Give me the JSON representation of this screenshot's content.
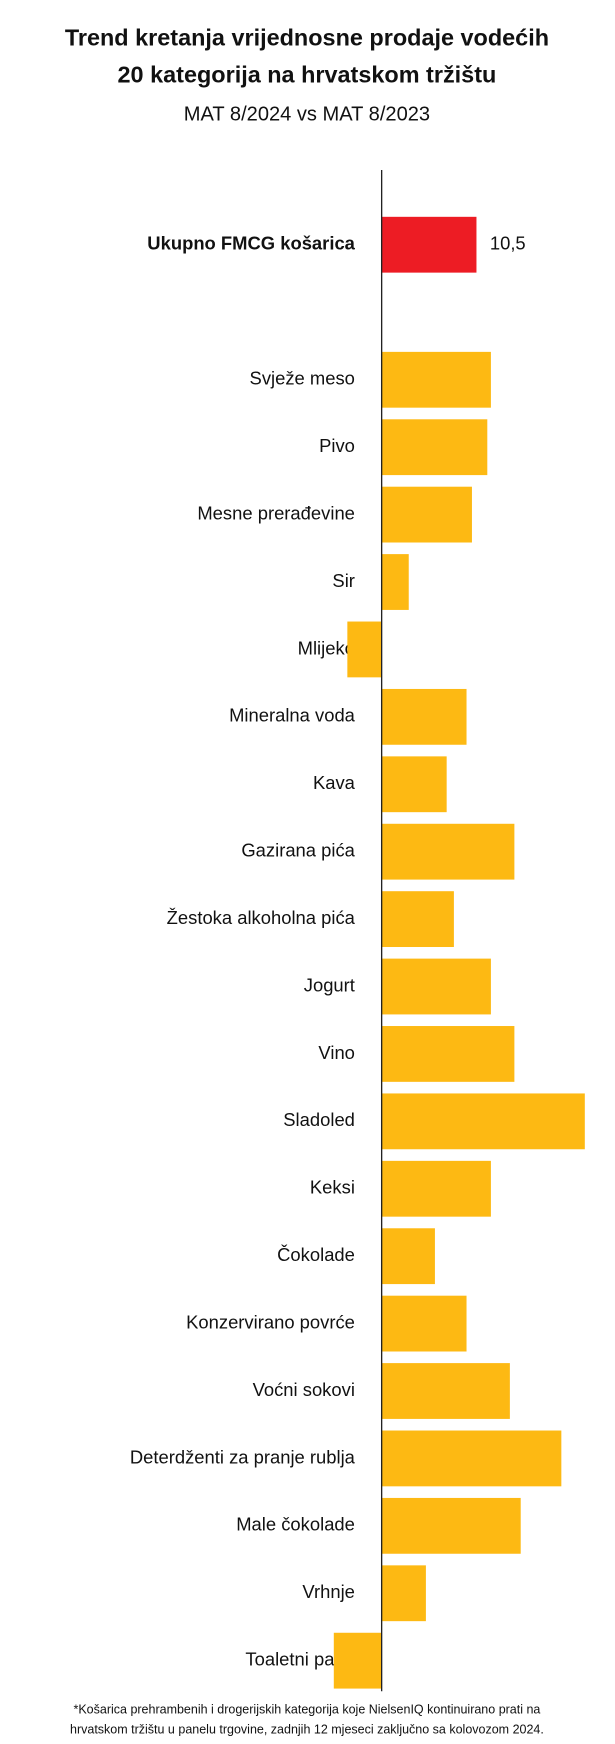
{
  "chart_data": {
    "type": "hbar",
    "title": [
      "Trend kretanja vrijednosne prodaje vodećih",
      "20 kategorija na hrvatskom tržištu"
    ],
    "subtitle": "MAT 8/2024 vs MAT 8/2023",
    "categories": [
      "Ukupno FMCG košarica",
      "Svježe meso",
      "Pivo",
      "Mesne prerađevine",
      "Sir",
      "Mlijeko",
      "Mineralna voda",
      "Kava",
      "Gazirana pića",
      "Žestoka alkoholna pića",
      "Jogurt",
      "Vino",
      "Sladoled",
      "Keksi",
      "Čokolade",
      "Konzervirano povrće",
      "Voćni sokovi",
      "Deterdženti za pranje rublja",
      "Male čokolade",
      "Vrhnje",
      "Toaletni papir"
    ],
    "values": [
      10.5,
      12.1,
      11.7,
      10.0,
      3.0,
      -3.8,
      9.4,
      7.2,
      14.7,
      8.0,
      12.1,
      14.7,
      22.5,
      12.1,
      5.9,
      9.4,
      14.2,
      19.9,
      15.4,
      4.9,
      -5.3
    ],
    "value_labels": [
      "10,5",
      null,
      null,
      null,
      null,
      null,
      null,
      null,
      null,
      null,
      null,
      null,
      null,
      null,
      null,
      null,
      null,
      null,
      null,
      null,
      null
    ],
    "colors": [
      "#ed1c24",
      "#fdb913",
      "#fdb913",
      "#fdb913",
      "#fdb913",
      "#fdb913",
      "#fdb913",
      "#fdb913",
      "#fdb913",
      "#fdb913",
      "#fdb913",
      "#fdb913",
      "#fdb913",
      "#fdb913",
      "#fdb913",
      "#fdb913",
      "#fdb913",
      "#fdb913",
      "#fdb913",
      "#fdb913",
      "#fdb913"
    ],
    "xlim": [
      -6,
      23
    ],
    "footnote": [
      "*Košarica prehrambenih i drogerijskih kategorija koje NielsenIQ kontinuirano prati na",
      "hrvatskom tržištu u panelu trgovine, zadnjih 12 mjeseci zaključno sa kolovozom 2024."
    ]
  }
}
